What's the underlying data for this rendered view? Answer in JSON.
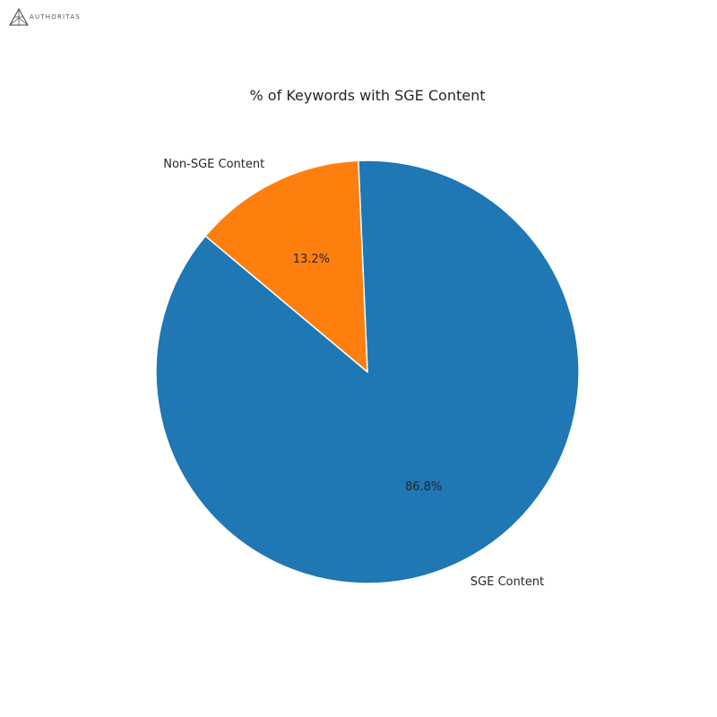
{
  "logo": {
    "text": "AUTHORITAS",
    "icon": "authoritas-logo-icon"
  },
  "chart_data": {
    "type": "pie",
    "title": "% of Keywords with SGE Content",
    "slices": [
      {
        "label": "SGE Content",
        "value": 86.8,
        "pct_label": "86.8%",
        "color": "#1f77b4"
      },
      {
        "label": "Non-SGE Content",
        "value": 13.2,
        "pct_label": "13.2%",
        "color": "#ff7f0e"
      }
    ],
    "start_angle_deg": 140,
    "counterclock": true,
    "legend": "none"
  }
}
